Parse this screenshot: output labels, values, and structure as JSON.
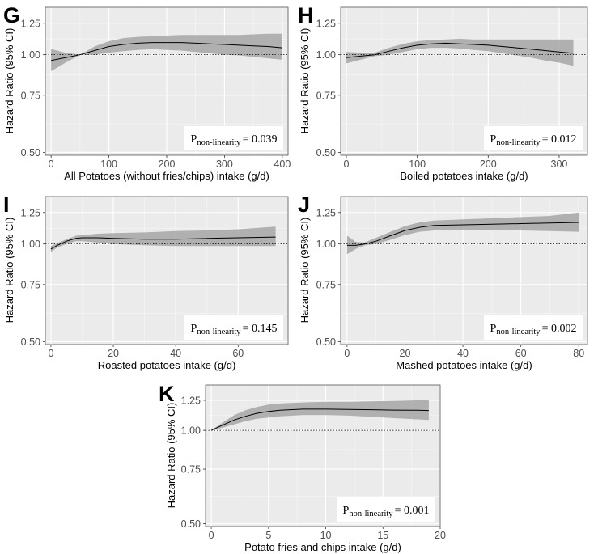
{
  "chart_data": [
    {
      "panel": "G",
      "type": "line",
      "xlabel": "All Potatoes (without fries/chips) intake (g/d)",
      "ylabel": "Hazard Ratio (95% CI)",
      "xlim": [
        -10,
        410
      ],
      "ylim": [
        0.49,
        1.4
      ],
      "yscale": "log",
      "xticks": [
        0,
        100,
        200,
        300,
        400
      ],
      "xtick_labels": [
        "0",
        "100",
        "200",
        "300",
        "400"
      ],
      "yticks": [
        0.5,
        0.75,
        1.0,
        1.25
      ],
      "ytick_labels": [
        "0.50",
        "0.75",
        "1.00",
        "1.25"
      ],
      "reference_line": 1.0,
      "p_label": "P",
      "p_subscript": "non-linearity",
      "p_value": "= 0.039",
      "p_position": "bottom-right",
      "series": [
        {
          "name": "Hazard ratio",
          "x": [
            0,
            25,
            50,
            75,
            100,
            125,
            150,
            175,
            200,
            225,
            250,
            275,
            300,
            325,
            350,
            375,
            400
          ],
          "y": [
            0.96,
            0.98,
            1.0,
            1.03,
            1.06,
            1.075,
            1.085,
            1.09,
            1.09,
            1.09,
            1.085,
            1.08,
            1.075,
            1.07,
            1.065,
            1.06,
            1.05
          ],
          "lower": [
            0.89,
            0.945,
            1.0,
            1.0,
            1.015,
            1.025,
            1.035,
            1.04,
            1.035,
            1.03,
            1.02,
            1.01,
            1.0,
            0.995,
            0.985,
            0.975,
            0.965
          ],
          "upper": [
            1.04,
            1.015,
            1.0,
            1.06,
            1.1,
            1.125,
            1.135,
            1.14,
            1.145,
            1.15,
            1.15,
            1.15,
            1.15,
            1.15,
            1.155,
            1.16,
            1.16
          ]
        }
      ]
    },
    {
      "panel": "H",
      "type": "line",
      "xlabel": "Boiled potatoes intake (g/d)",
      "ylabel": "Hazard Ratio (95% CI)",
      "xlim": [
        -8,
        340
      ],
      "ylim": [
        0.49,
        1.4
      ],
      "yscale": "log",
      "xticks": [
        0,
        100,
        200,
        300
      ],
      "xtick_labels": [
        "0",
        "100",
        "200",
        "300"
      ],
      "yticks": [
        0.5,
        0.75,
        1.0,
        1.25
      ],
      "ytick_labels": [
        "0.50",
        "0.75",
        "1.00",
        "1.25"
      ],
      "reference_line": 1.0,
      "p_label": "P",
      "p_subscript": "non-linearity",
      "p_value": "= 0.012",
      "p_position": "bottom-right",
      "series": [
        {
          "name": "Hazard ratio",
          "x": [
            0,
            20,
            40,
            60,
            80,
            100,
            120,
            140,
            160,
            180,
            200,
            220,
            240,
            260,
            280,
            300,
            320
          ],
          "y": [
            0.98,
            0.99,
            1.0,
            1.025,
            1.05,
            1.07,
            1.08,
            1.085,
            1.08,
            1.075,
            1.07,
            1.06,
            1.05,
            1.04,
            1.03,
            1.02,
            1.01
          ],
          "lower": [
            0.94,
            0.965,
            0.99,
            1.0,
            1.02,
            1.04,
            1.05,
            1.05,
            1.045,
            1.035,
            1.025,
            1.01,
            0.995,
            0.98,
            0.96,
            0.945,
            0.925
          ],
          "upper": [
            1.02,
            1.015,
            1.015,
            1.05,
            1.08,
            1.1,
            1.11,
            1.115,
            1.12,
            1.115,
            1.115,
            1.115,
            1.115,
            1.115,
            1.115,
            1.115,
            1.115
          ]
        }
      ]
    },
    {
      "panel": "I",
      "type": "line",
      "xlabel": "Roasted potatoes intake (g/d)",
      "ylabel": "Hazard Ratio (95% CI)",
      "xlim": [
        -1.8,
        76
      ],
      "ylim": [
        0.49,
        1.4
      ],
      "yscale": "log",
      "xticks": [
        0,
        20,
        40,
        60
      ],
      "xtick_labels": [
        "0",
        "20",
        "40",
        "60"
      ],
      "yticks": [
        0.5,
        0.75,
        1.0,
        1.25
      ],
      "ytick_labels": [
        "0.50",
        "0.75",
        "1.00",
        "1.25"
      ],
      "reference_line": 1.0,
      "p_label": "P",
      "p_subscript": "non-linearity",
      "p_value": "= 0.145",
      "p_position": "bottom-right",
      "series": [
        {
          "name": "Hazard ratio",
          "x": [
            0,
            2,
            5,
            8,
            10,
            15,
            20,
            30,
            40,
            50,
            60,
            72
          ],
          "y": [
            0.965,
            0.99,
            1.02,
            1.04,
            1.045,
            1.045,
            1.04,
            1.035,
            1.035,
            1.04,
            1.045,
            1.05
          ],
          "lower": [
            0.945,
            0.975,
            1.0,
            1.02,
            1.02,
            1.01,
            1.0,
            0.99,
            0.985,
            0.985,
            0.985,
            0.985
          ],
          "upper": [
            0.985,
            1.005,
            1.035,
            1.06,
            1.065,
            1.075,
            1.08,
            1.085,
            1.095,
            1.1,
            1.11,
            1.13
          ]
        }
      ]
    },
    {
      "panel": "J",
      "type": "line",
      "xlabel": "Mashed potatoes intake (g/d)",
      "ylabel": "Hazard Ratio (95% CI)",
      "xlim": [
        -2.2,
        83
      ],
      "ylim": [
        0.49,
        1.4
      ],
      "yscale": "log",
      "xticks": [
        0,
        20,
        40,
        60,
        80
      ],
      "xtick_labels": [
        "0",
        "20",
        "40",
        "60",
        "80"
      ],
      "yticks": [
        0.5,
        0.75,
        1.0,
        1.25
      ],
      "ytick_labels": [
        "0.50",
        "0.75",
        "1.00",
        "1.25"
      ],
      "reference_line": 1.0,
      "p_label": "P",
      "p_subscript": "non-linearity",
      "p_value": "= 0.002",
      "p_position": "bottom-right",
      "series": [
        {
          "name": "Hazard ratio",
          "x": [
            0,
            3,
            6,
            10,
            15,
            20,
            25,
            30,
            40,
            50,
            60,
            70,
            80
          ],
          "y": [
            0.99,
            0.99,
            1.0,
            1.02,
            1.06,
            1.1,
            1.125,
            1.14,
            1.145,
            1.15,
            1.155,
            1.16,
            1.165
          ],
          "lower": [
            0.93,
            0.965,
            0.99,
            1.0,
            1.03,
            1.065,
            1.09,
            1.1,
            1.105,
            1.105,
            1.1,
            1.095,
            1.09
          ],
          "upper": [
            1.06,
            1.015,
            1.01,
            1.045,
            1.09,
            1.135,
            1.165,
            1.18,
            1.19,
            1.2,
            1.21,
            1.22,
            1.25
          ]
        }
      ]
    },
    {
      "panel": "K",
      "type": "line",
      "xlabel": "Potato fries and chips intake (g/d)",
      "ylabel": "Hazard Ratio (95% CI)",
      "xlim": [
        -0.5,
        20
      ],
      "ylim": [
        0.49,
        1.4
      ],
      "yscale": "log",
      "xticks": [
        0,
        5,
        10,
        15,
        20
      ],
      "xtick_labels": [
        "0",
        "5",
        "10",
        "15",
        "20"
      ],
      "yticks": [
        0.5,
        0.75,
        1.0,
        1.25
      ],
      "ytick_labels": [
        "0.50",
        "0.75",
        "1.00",
        "1.25"
      ],
      "reference_line": 1.0,
      "p_label": "P",
      "p_subscript": "non-linearity",
      "p_value": "= 0.001",
      "p_position": "bottom-right",
      "series": [
        {
          "name": "Hazard ratio",
          "x": [
            0,
            1,
            2,
            3,
            4,
            5,
            6,
            8,
            10,
            12,
            14,
            16,
            18,
            19
          ],
          "y": [
            1.0,
            1.04,
            1.08,
            1.11,
            1.135,
            1.15,
            1.16,
            1.17,
            1.17,
            1.168,
            1.165,
            1.162,
            1.16,
            1.158
          ],
          "lower": [
            1.0,
            1.02,
            1.045,
            1.07,
            1.09,
            1.1,
            1.11,
            1.12,
            1.12,
            1.115,
            1.105,
            1.095,
            1.085,
            1.08
          ],
          "upper": [
            1.0,
            1.06,
            1.12,
            1.16,
            1.19,
            1.21,
            1.22,
            1.23,
            1.235,
            1.235,
            1.24,
            1.245,
            1.25,
            1.255
          ]
        }
      ]
    }
  ]
}
